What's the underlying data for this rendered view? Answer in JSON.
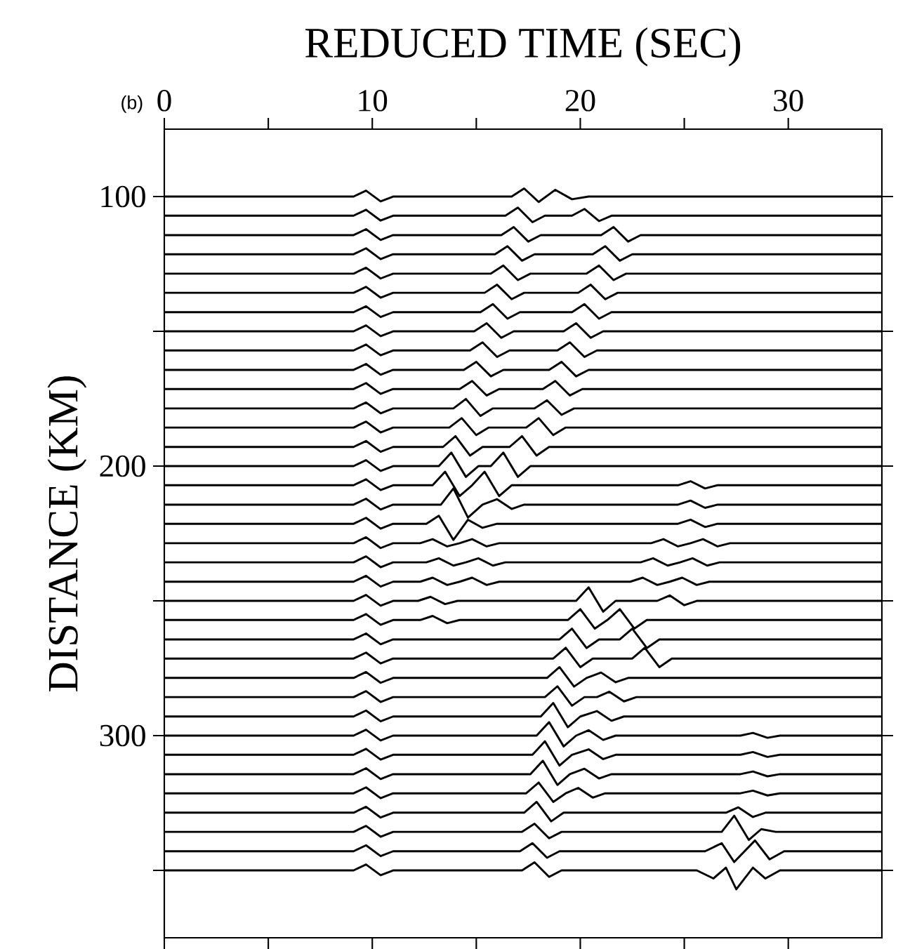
{
  "chart_data": {
    "type": "line",
    "xlabel": "REDUCED TIME (SEC)",
    "ylabel": "DISTANCE (KM)",
    "annotations": [
      "(b)"
    ],
    "xlim": [
      0,
      34.5
    ],
    "ylim": [
      375,
      75
    ],
    "xticks": [
      0,
      {
        "value": 5,
        "label": null
      },
      10,
      {
        "value": 15,
        "label": null
      },
      20,
      {
        "value": 25,
        "label": null
      },
      30
    ],
    "yticks": [
      100,
      {
        "value": 150,
        "label": null
      },
      200,
      {
        "value": 250,
        "label": null
      },
      300,
      {
        "value": 350,
        "label": null
      }
    ],
    "marker": "none",
    "line_style": "solid",
    "grid": false,
    "series": [
      {
        "color": "#000000",
        "x": [
          0,
          9.1,
          9.7,
          10.4,
          11,
          16.7,
          17.3,
          18,
          18.8,
          19.6,
          20.4,
          34.5
        ],
        "values": [
          100,
          100,
          97.8,
          101.8,
          100,
          100,
          97,
          102,
          97.5,
          101,
          100,
          100
        ]
      },
      {
        "color": "#000000",
        "x": [
          0,
          9.1,
          9.7,
          10.4,
          11,
          16.4,
          17,
          17.7,
          18.3,
          19.6,
          20.2,
          20.9,
          21.5,
          34.5
        ],
        "values": [
          107.1,
          107.1,
          104.9,
          108.9,
          107.1,
          107.1,
          104.1,
          109.5,
          107.1,
          107.1,
          104.6,
          109.1,
          107.1,
          107.1
        ]
      },
      {
        "color": "#000000",
        "x": [
          0,
          9.1,
          9.7,
          10.4,
          11,
          16.2,
          16.8,
          17.5,
          18.1,
          21,
          21.6,
          22.3,
          22.9,
          34.5
        ],
        "values": [
          114.3,
          114.3,
          112.1,
          116.1,
          114.3,
          114.3,
          111.3,
          116.7,
          114.3,
          114.3,
          111.3,
          116.7,
          114.3,
          114.3
        ]
      },
      {
        "color": "#000000",
        "x": [
          0,
          9.1,
          9.7,
          10.4,
          11,
          15.9,
          16.5,
          17.2,
          17.8,
          20.6,
          21.2,
          21.9,
          22.5,
          34.5
        ],
        "values": [
          121.4,
          121.4,
          119.2,
          123.2,
          121.4,
          121.4,
          118.4,
          123.8,
          121.4,
          121.4,
          118.4,
          123.8,
          121.4,
          121.4
        ]
      },
      {
        "color": "#000000",
        "x": [
          0,
          9.1,
          9.7,
          10.4,
          11,
          15.7,
          16.3,
          17,
          17.6,
          20.3,
          20.9,
          21.6,
          22.2,
          34.5
        ],
        "values": [
          128.6,
          128.6,
          126.4,
          130.4,
          128.6,
          128.6,
          125.6,
          131,
          128.6,
          128.6,
          125.6,
          131,
          128.6,
          128.6
        ]
      },
      {
        "color": "#000000",
        "x": [
          0,
          9.1,
          9.7,
          10.4,
          11,
          15.4,
          16,
          16.7,
          17.3,
          19.9,
          20.5,
          21.2,
          21.8,
          34.5
        ],
        "values": [
          135.7,
          135.7,
          133.5,
          137.5,
          135.7,
          135.7,
          132.7,
          138.1,
          135.7,
          135.7,
          132.7,
          138.1,
          135.7,
          135.7
        ]
      },
      {
        "color": "#000000",
        "x": [
          0,
          9.1,
          9.7,
          10.4,
          11,
          15.2,
          15.8,
          16.5,
          17.1,
          19.6,
          20.2,
          20.9,
          21.5,
          34.5
        ],
        "values": [
          142.9,
          142.9,
          140.7,
          144.7,
          142.9,
          142.9,
          139.9,
          145.3,
          142.9,
          142.9,
          139.9,
          145.3,
          142.9,
          142.9
        ]
      },
      {
        "color": "#000000",
        "x": [
          0,
          9.1,
          9.7,
          10.4,
          11,
          14.9,
          15.5,
          16.2,
          16.8,
          19.2,
          19.8,
          20.5,
          21.1,
          34.5
        ],
        "values": [
          150,
          150,
          147.8,
          151.8,
          150,
          150,
          147,
          152.4,
          150,
          150,
          147,
          152.4,
          150,
          150
        ]
      },
      {
        "color": "#000000",
        "x": [
          0,
          9.1,
          9.7,
          10.4,
          11,
          14.7,
          15.3,
          16,
          16.6,
          18.9,
          19.5,
          20.2,
          20.8,
          34.5
        ],
        "values": [
          157.1,
          157.1,
          154.9,
          158.9,
          157.1,
          157.1,
          154.1,
          159.5,
          157.1,
          157.1,
          154.1,
          159.5,
          157.1,
          157.1
        ]
      },
      {
        "color": "#000000",
        "x": [
          0,
          9.1,
          9.7,
          10.4,
          11,
          14.4,
          15,
          15.7,
          16.3,
          18.5,
          19.1,
          19.8,
          20.4,
          34.5
        ],
        "values": [
          164.3,
          164.3,
          162.1,
          166.1,
          164.3,
          164.3,
          161.3,
          166.7,
          164.3,
          164.3,
          161.3,
          166.7,
          164.3,
          164.3
        ]
      },
      {
        "color": "#000000",
        "x": [
          0,
          9.1,
          9.7,
          10.4,
          11,
          14.2,
          14.8,
          15.5,
          16.1,
          18.2,
          18.8,
          19.5,
          20.1,
          34.5
        ],
        "values": [
          171.4,
          171.4,
          169.2,
          173.2,
          171.4,
          171.4,
          168.4,
          173.8,
          171.4,
          171.4,
          168.4,
          173.8,
          171.4,
          171.4
        ]
      },
      {
        "color": "#000000",
        "x": [
          0,
          9.1,
          9.7,
          10.4,
          11,
          13.9,
          14.5,
          15.2,
          15.8,
          17.8,
          18.4,
          19.1,
          19.7,
          34.5
        ],
        "values": [
          178.6,
          178.6,
          176.4,
          180.4,
          178.6,
          178.6,
          175.1,
          181.4,
          178.6,
          178.6,
          175.6,
          181,
          178.6,
          178.6
        ]
      },
      {
        "color": "#000000",
        "x": [
          0,
          9.1,
          9.7,
          10.4,
          11,
          13.7,
          14.3,
          15,
          15.6,
          17.4,
          18,
          18.7,
          19.3,
          34.5
        ],
        "values": [
          185.7,
          185.7,
          183.5,
          187.5,
          185.7,
          185.7,
          182.2,
          188.5,
          185.7,
          185.7,
          182.2,
          188.5,
          185.7,
          185.7
        ]
      },
      {
        "color": "#000000",
        "x": [
          0,
          9.1,
          9.7,
          10.4,
          11,
          13.4,
          14,
          14.7,
          15.3,
          16.6,
          17.2,
          17.9,
          18.5,
          34.5
        ],
        "values": [
          192.9,
          192.9,
          190.7,
          194.7,
          192.9,
          192.9,
          188.9,
          196.1,
          192.9,
          192.9,
          188.9,
          196.1,
          192.9,
          192.9
        ]
      },
      {
        "color": "#000000",
        "x": [
          0,
          9.1,
          9.7,
          10.4,
          11,
          13.2,
          13.8,
          14.5,
          15.1,
          15.7,
          16.3,
          17,
          17.6,
          34.5
        ],
        "values": [
          200,
          200,
          197.8,
          201.8,
          200,
          200,
          195,
          204,
          200,
          200,
          195,
          204,
          200,
          200
        ]
      },
      {
        "color": "#000000",
        "x": [
          0,
          9.1,
          9.7,
          10.4,
          11,
          12.9,
          13.5,
          14.2,
          14.8,
          15.4,
          16.1,
          16.7,
          24.7,
          25.3,
          26,
          26.6,
          34.5
        ],
        "values": [
          207.1,
          207.1,
          204.9,
          208.9,
          207.1,
          207.1,
          202.1,
          211.1,
          207.1,
          202.1,
          211.1,
          207.1,
          207.1,
          205.6,
          208.3,
          207.1,
          207.1
        ]
      },
      {
        "color": "#000000",
        "x": [
          0,
          9.1,
          9.7,
          10.4,
          11,
          13.3,
          13.9,
          14.6,
          15.3,
          16,
          16.7,
          17.3,
          24.7,
          25.3,
          26,
          26.6,
          34.5
        ],
        "values": [
          214.3,
          214.3,
          212.1,
          216.1,
          214.3,
          214.3,
          208.3,
          219.1,
          214.3,
          212.3,
          215.9,
          214.3,
          214.3,
          212.8,
          215.5,
          214.3,
          214.3
        ]
      },
      {
        "color": "#000000",
        "x": [
          0,
          9.1,
          9.7,
          10.4,
          11,
          12.6,
          13.2,
          13.9,
          14.6,
          15.3,
          16,
          24.7,
          25.3,
          26,
          26.6,
          34.5
        ],
        "values": [
          221.4,
          221.4,
          219.2,
          223.2,
          221.4,
          221.4,
          218.4,
          227.4,
          219.9,
          222.9,
          221.4,
          221.4,
          219.9,
          222.6,
          221.4,
          221.4
        ]
      },
      {
        "color": "#000000",
        "x": [
          0,
          9.1,
          9.7,
          10.4,
          11,
          12.3,
          12.9,
          13.6,
          14.2,
          14.8,
          15.5,
          16.1,
          23.4,
          24,
          24.7,
          25.3,
          25.9,
          26.6,
          27.2,
          34.5
        ],
        "values": [
          228.6,
          228.6,
          226.4,
          230.4,
          228.6,
          228.6,
          227.1,
          229.8,
          228.6,
          227.1,
          229.8,
          228.6,
          228.6,
          227.1,
          229.8,
          228.6,
          227.1,
          229.8,
          228.6,
          228.6
        ]
      },
      {
        "color": "#000000",
        "x": [
          0,
          9.1,
          9.7,
          10.4,
          11,
          12.6,
          13.2,
          13.9,
          14.5,
          15.1,
          15.8,
          16.4,
          22.9,
          23.5,
          24.2,
          24.8,
          25.4,
          26.1,
          26.7,
          34.5
        ],
        "values": [
          235.7,
          235.7,
          233.5,
          237.5,
          235.7,
          235.7,
          234.2,
          236.9,
          235.7,
          234.2,
          236.9,
          235.7,
          235.7,
          234.2,
          236.9,
          235.7,
          234.2,
          236.9,
          235.7,
          235.7
        ]
      },
      {
        "color": "#000000",
        "x": [
          0,
          9.1,
          9.7,
          10.4,
          11,
          12.3,
          12.9,
          13.6,
          14.2,
          14.8,
          15.5,
          16.1,
          22.4,
          23,
          23.7,
          24.3,
          24.9,
          25.6,
          26.2,
          34.5
        ],
        "values": [
          242.9,
          242.9,
          240.7,
          244.7,
          242.9,
          242.9,
          241.4,
          244.1,
          242.9,
          241.4,
          244.1,
          242.9,
          242.9,
          241.4,
          244.1,
          242.9,
          241.4,
          244.1,
          242.9,
          242.9
        ]
      },
      {
        "color": "#000000",
        "x": [
          0,
          9.1,
          9.7,
          10.4,
          11,
          12.2,
          12.8,
          13.5,
          14.1,
          19.8,
          20.4,
          21.1,
          21.7,
          23.7,
          24.3,
          25,
          25.6,
          34.5
        ],
        "values": [
          250,
          250,
          247.8,
          251.8,
          250,
          250,
          248.5,
          251.2,
          250,
          250,
          245,
          254,
          250,
          250,
          248,
          251.6,
          250,
          250
        ]
      },
      {
        "color": "#000000",
        "x": [
          0,
          9.1,
          9.7,
          10.4,
          11,
          12.3,
          12.9,
          13.6,
          14.2,
          19.4,
          20,
          20.7,
          21.3,
          21.9,
          22.6,
          23.2,
          34.5
        ],
        "values": [
          257.1,
          257.1,
          254.9,
          258.9,
          257.1,
          257.1,
          255.6,
          258.3,
          257.1,
          257.1,
          253.1,
          260.3,
          257.1,
          253.1,
          260.3,
          257.1,
          257.1
        ]
      },
      {
        "color": "#000000",
        "x": [
          0,
          9.1,
          9.7,
          10.4,
          11,
          19,
          19.6,
          20.3,
          20.9,
          21.9,
          22.5,
          23.2,
          23.8,
          34.5
        ],
        "values": [
          264.3,
          264.3,
          262.1,
          266.1,
          264.3,
          264.3,
          260.3,
          267.5,
          264.3,
          264.3,
          260.3,
          267.5,
          264.3,
          264.3
        ]
      },
      {
        "color": "#000000",
        "x": [
          0,
          9.1,
          9.7,
          10.4,
          11,
          18.7,
          19.3,
          20,
          20.6,
          22.5,
          23.1,
          23.8,
          24.4,
          34.5
        ],
        "values": [
          271.4,
          271.4,
          269.2,
          273.2,
          271.4,
          271.4,
          267.4,
          274.6,
          271.4,
          271.4,
          267.4,
          274.6,
          271.4,
          271.4
        ]
      },
      {
        "color": "#000000",
        "x": [
          0,
          9.1,
          9.7,
          10.4,
          11,
          18.4,
          19,
          19.7,
          20.3,
          21,
          21.7,
          22.3,
          34.5
        ],
        "values": [
          278.6,
          278.6,
          276.4,
          280.4,
          278.6,
          278.6,
          274.6,
          281.8,
          278.6,
          276.6,
          280.2,
          278.6,
          278.6
        ]
      },
      {
        "color": "#000000",
        "x": [
          0,
          9.1,
          9.7,
          10.4,
          11,
          18.3,
          18.9,
          19.6,
          20.2,
          20.8,
          21.4,
          22.1,
          22.7,
          34.5
        ],
        "values": [
          285.7,
          285.7,
          283.5,
          287.5,
          285.7,
          285.7,
          281.7,
          288.9,
          285.7,
          285.7,
          283.7,
          287.3,
          285.7,
          285.7
        ]
      },
      {
        "color": "#000000",
        "x": [
          0,
          9.1,
          9.7,
          10.4,
          11,
          18.1,
          18.7,
          19.4,
          20,
          20.8,
          21.5,
          22.1,
          34.5
        ],
        "values": [
          292.9,
          292.9,
          290.7,
          294.7,
          292.9,
          292.9,
          287.9,
          296.9,
          292.9,
          290.9,
          294.5,
          292.9,
          292.9
        ]
      },
      {
        "color": "#000000",
        "x": [
          0,
          9.1,
          9.7,
          10.4,
          11,
          17.9,
          18.5,
          19.2,
          19.8,
          20.4,
          21.1,
          21.7,
          27.7,
          28.3,
          29,
          29.6,
          34.5
        ],
        "values": [
          300,
          300,
          297.8,
          301.8,
          300,
          300,
          295,
          304,
          300,
          298,
          301.6,
          300,
          300,
          299,
          300.8,
          300,
          300
        ]
      },
      {
        "color": "#000000",
        "x": [
          0,
          9.1,
          9.7,
          10.4,
          11,
          17.7,
          18.3,
          19,
          19.6,
          20.4,
          21.1,
          21.7,
          27.7,
          28.3,
          29,
          29.6,
          34.5
        ],
        "values": [
          307.1,
          307.1,
          304.9,
          308.9,
          307.1,
          307.1,
          302.1,
          311.1,
          307.1,
          305.1,
          308.7,
          307.1,
          307.1,
          306.1,
          307.9,
          307.1,
          307.1
        ]
      },
      {
        "color": "#000000",
        "x": [
          0,
          9.1,
          9.7,
          10.4,
          11,
          17.6,
          18.2,
          18.9,
          19.5,
          20.2,
          20.9,
          21.5,
          27.7,
          28.3,
          29,
          29.6,
          34.5
        ],
        "values": [
          314.3,
          314.3,
          312.1,
          316.1,
          314.3,
          314.3,
          309.3,
          318.3,
          314.3,
          312.3,
          315.9,
          314.3,
          314.3,
          313.3,
          315.1,
          314.3,
          314.3
        ]
      },
      {
        "color": "#000000",
        "x": [
          0,
          9.1,
          9.7,
          10.4,
          11,
          17.4,
          18,
          18.7,
          19.3,
          19.9,
          20.6,
          21.2,
          27.7,
          28.3,
          29,
          29.6,
          34.5
        ],
        "values": [
          321.4,
          321.4,
          319.2,
          323.2,
          321.4,
          321.4,
          317.4,
          324.6,
          321.4,
          319.4,
          323,
          321.4,
          321.4,
          320.4,
          322.2,
          321.4,
          321.4
        ]
      },
      {
        "color": "#000000",
        "x": [
          0,
          9.1,
          9.7,
          10.4,
          11,
          17.3,
          17.9,
          18.6,
          19.2,
          27,
          27.6,
          28.3,
          28.9,
          34.5
        ],
        "values": [
          328.6,
          328.6,
          326.4,
          330.4,
          328.6,
          328.6,
          324.6,
          331.8,
          328.6,
          328.6,
          326.6,
          330.2,
          328.6,
          328.6
        ]
      },
      {
        "color": "#000000",
        "x": [
          0,
          9.1,
          9.7,
          10.4,
          11,
          17.2,
          17.8,
          18.5,
          19.1,
          26.8,
          27.4,
          28.1,
          28.7,
          29.4,
          34.5
        ],
        "values": [
          335.7,
          335.7,
          333.5,
          337.5,
          335.7,
          335.7,
          332.7,
          338.1,
          335.7,
          335.7,
          329.7,
          338.7,
          334.7,
          335.7,
          335.7
        ]
      },
      {
        "color": "#000000",
        "x": [
          0,
          9.1,
          9.7,
          10.4,
          11,
          17.1,
          17.7,
          18.4,
          19,
          26,
          26.8,
          27.4,
          28.4,
          29.1,
          29.8,
          34.5
        ],
        "values": [
          342.9,
          342.9,
          340.7,
          344.7,
          342.9,
          342.9,
          339.9,
          345.3,
          342.9,
          342.9,
          339.9,
          346.9,
          338.9,
          345.9,
          342.9,
          342.9
        ]
      },
      {
        "color": "#000000",
        "x": [
          0,
          9.1,
          9.7,
          10.4,
          11,
          17.2,
          17.8,
          18.5,
          19.1,
          25.6,
          26.4,
          27,
          27.5,
          28.3,
          28.9,
          29.6,
          34.5
        ],
        "values": [
          350,
          350,
          347.8,
          351.8,
          350,
          350,
          347,
          352.4,
          350,
          350,
          353,
          349,
          357,
          349,
          353,
          350,
          350
        ]
      }
    ]
  }
}
